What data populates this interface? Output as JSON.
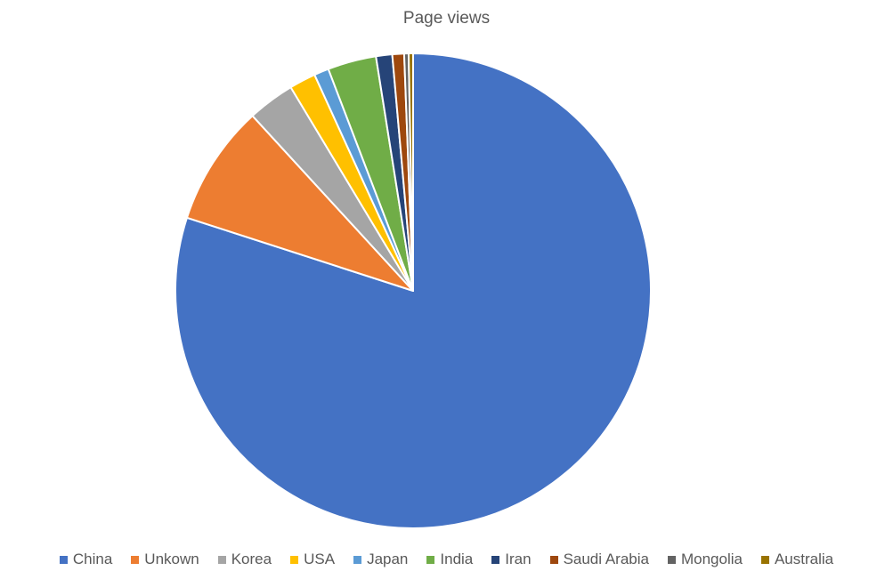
{
  "chart_data": {
    "type": "pie",
    "title": "Page views",
    "legend_position": "bottom",
    "slices": [
      {
        "label": "China",
        "value": 79.9,
        "color": "#4472C4"
      },
      {
        "label": "Unkown",
        "value": 8.2,
        "color": "#ED7D31"
      },
      {
        "label": "Korea",
        "value": 3.2,
        "color": "#A5A5A5"
      },
      {
        "label": "USA",
        "value": 1.8,
        "color": "#FFC000"
      },
      {
        "label": "Japan",
        "value": 1.0,
        "color": "#5B9BD5"
      },
      {
        "label": "India",
        "value": 3.3,
        "color": "#70AD47"
      },
      {
        "label": "Iran",
        "value": 1.1,
        "color": "#264478"
      },
      {
        "label": "Saudi Arabia",
        "value": 0.8,
        "color": "#9E480E"
      },
      {
        "label": "Mongolia",
        "value": 0.3,
        "color": "#636363"
      },
      {
        "label": "Australia",
        "value": 0.3,
        "color": "#997300"
      }
    ]
  }
}
